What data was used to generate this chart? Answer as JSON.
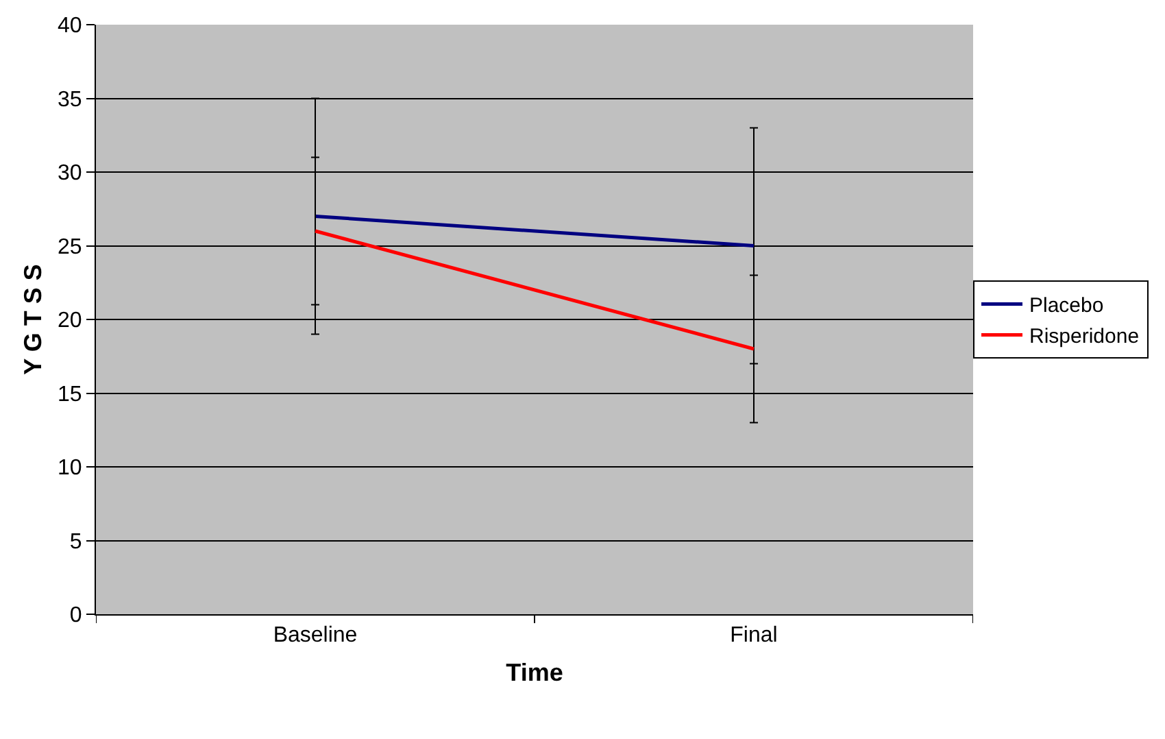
{
  "chart_data": {
    "type": "line",
    "xlabel": "Time",
    "ylabel": "Y G T S S",
    "categories": [
      "Baseline",
      "Final"
    ],
    "series": [
      {
        "name": "Placebo",
        "color": "#000080",
        "values": [
          27,
          25
        ],
        "errors": [
          8,
          8
        ]
      },
      {
        "name": "Risperidone",
        "color": "#ff0000",
        "values": [
          26,
          18
        ],
        "errors": [
          5,
          5
        ]
      }
    ],
    "ylim": [
      0,
      40
    ],
    "yticks": [
      0,
      5,
      10,
      15,
      20,
      25,
      30,
      35,
      40
    ],
    "grid": "y",
    "legend": "right",
    "marker": "none",
    "line_style": "solid"
  }
}
